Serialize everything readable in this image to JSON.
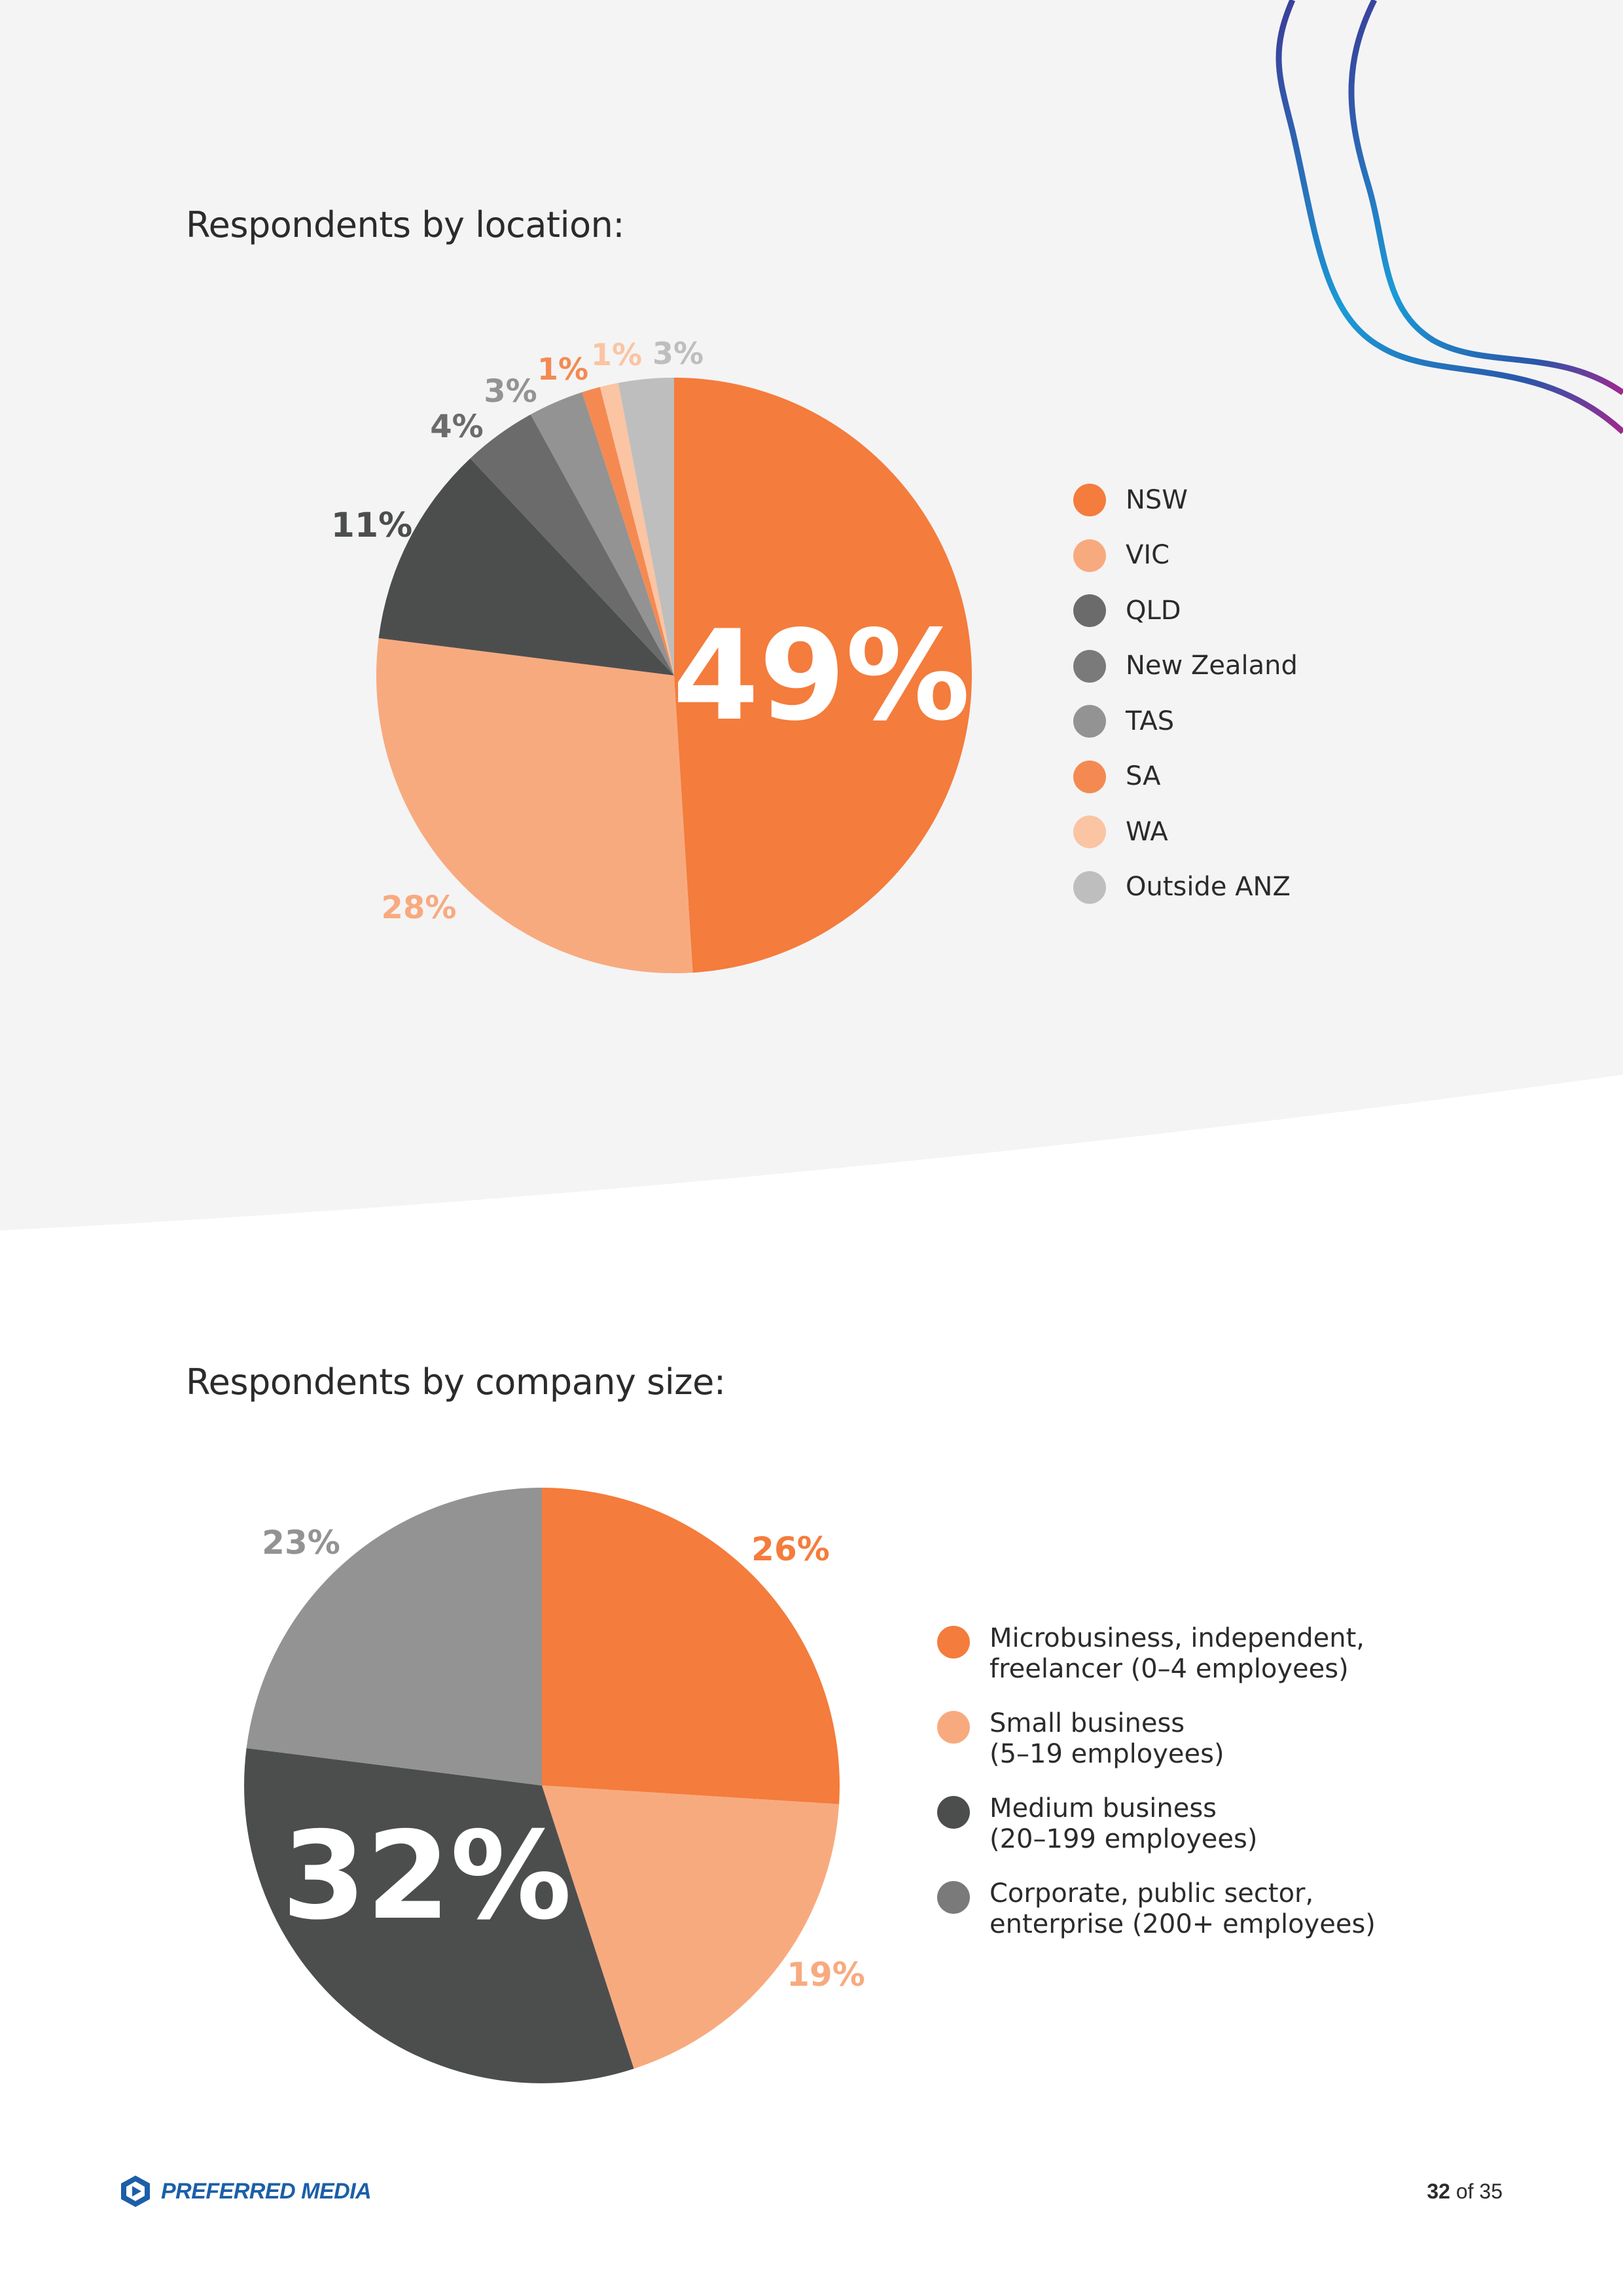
{
  "colors": {
    "orange": "#f47c3c",
    "light_orange": "#f8aa7f",
    "dark_gray": "#4c4e4e",
    "mid_gray": "#6b6b6b",
    "gray": "#8a8a8a",
    "light_gray": "#bebebe",
    "page_bg": "#f4f4f5",
    "brand_blue": "#1c5fa8"
  },
  "chart_data": [
    {
      "type": "pie",
      "title": "Respondents by location:",
      "slices": [
        {
          "label": "NSW",
          "value": 49,
          "display": "49%",
          "color": "#f47c3c",
          "text_color": "#ffffff"
        },
        {
          "label": "VIC",
          "value": 28,
          "display": "28%",
          "color": "#f8aa7f",
          "text_color": "#f8aa7f"
        },
        {
          "label": "QLD",
          "value": 11,
          "display": "11%",
          "color": "#4c4e4e",
          "text_color": "#4c4e4e"
        },
        {
          "label": "New Zealand",
          "value": 4,
          "display": "4%",
          "color": "#6b6b6b",
          "text_color": "#6b6b6b"
        },
        {
          "label": "TAS",
          "value": 3,
          "display": "3%",
          "color": "#939393",
          "text_color": "#939393"
        },
        {
          "label": "SA",
          "value": 1,
          "display": "1%",
          "color": "#f48a52",
          "text_color": "#f48a52"
        },
        {
          "label": "WA",
          "value": 1,
          "display": "1%",
          "color": "#fbc4a3",
          "text_color": "#fbc4a3"
        },
        {
          "label": "Outside ANZ",
          "value": 3,
          "display": "3%",
          "color": "#bebebe",
          "text_color": "#bebebe"
        }
      ]
    },
    {
      "type": "pie",
      "title": "Respondents by company size:",
      "slices": [
        {
          "label": "Microbusiness, independent, freelancer (0–4 employees)",
          "value": 26,
          "display": "26%",
          "color": "#f47c3c",
          "text_color": "#f47c3c"
        },
        {
          "label": "Small business (5–19 employees)",
          "value": 19,
          "display": "19%",
          "color": "#f8aa7f",
          "text_color": "#f8aa7f"
        },
        {
          "label": "Medium business (20–199 employees)",
          "value": 32,
          "display": "32%",
          "color": "#4c4e4e",
          "text_color": "#ffffff"
        },
        {
          "label": "Corporate, public sector, enterprise (200+ employees)",
          "value": 23,
          "display": "23%",
          "color": "#939393",
          "text_color": "#939393"
        }
      ]
    }
  ],
  "legend_location": [
    {
      "label": "NSW",
      "color": "#f47c3c"
    },
    {
      "label": "VIC",
      "color": "#f8aa7f"
    },
    {
      "label": "QLD",
      "color": "#6b6b6b"
    },
    {
      "label": "New Zealand",
      "color": "#7a7a7a"
    },
    {
      "label": "TAS",
      "color": "#939393"
    },
    {
      "label": "SA",
      "color": "#f48a52"
    },
    {
      "label": "WA",
      "color": "#fbc4a3"
    },
    {
      "label": "Outside ANZ",
      "color": "#bebebe"
    }
  ],
  "legend_company": [
    {
      "line1": "Microbusiness, independent,",
      "line2": "freelancer (0–4 employees)",
      "color": "#f47c3c"
    },
    {
      "line1": "Small business",
      "line2": "(5–19 employees)",
      "color": "#f8aa7f"
    },
    {
      "line1": "Medium business",
      "line2": "(20–199 employees)",
      "color": "#4c4e4e"
    },
    {
      "line1": "Corporate, public sector,",
      "line2": "enterprise (200+ employees)",
      "color": "#7a7a7a"
    }
  ],
  "footer": {
    "brand": "PREFERRED MEDIA",
    "page_current": "32",
    "page_text": "of 35"
  }
}
